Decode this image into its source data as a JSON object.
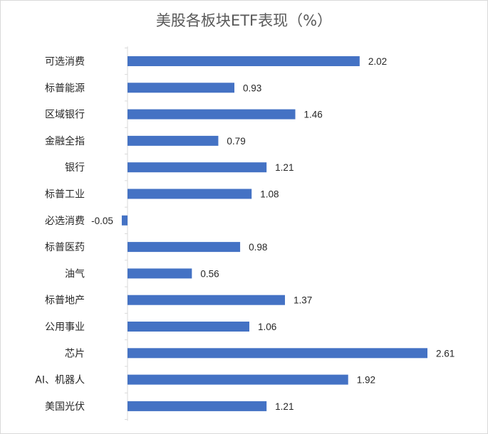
{
  "chart_data": {
    "type": "bar",
    "orientation": "horizontal",
    "title": "美股各板块ETF表现（%）",
    "xlabel": "",
    "ylabel": "",
    "categories": [
      "可选消费",
      "标普能源",
      "区域银行",
      "金融全指",
      "银行",
      "标普工业",
      "必选消费",
      "标普医药",
      "油气",
      "标普地产",
      "公用事业",
      "芯片",
      "AI、机器人",
      "美国光伏"
    ],
    "values": [
      2.02,
      0.93,
      1.46,
      0.79,
      1.21,
      1.08,
      -0.05,
      0.98,
      0.56,
      1.37,
      1.06,
      2.61,
      1.92,
      1.21
    ],
    "value_labels": [
      "2.02",
      "0.93",
      "1.46",
      "0.79",
      "1.21",
      "1.08",
      "-0.05",
      "0.98",
      "0.56",
      "1.37",
      "1.06",
      "2.61",
      "1.92",
      "1.21"
    ],
    "bar_color": "#4472C4",
    "axis_color": "#d9d9d9",
    "grid": false,
    "legend": "none"
  }
}
